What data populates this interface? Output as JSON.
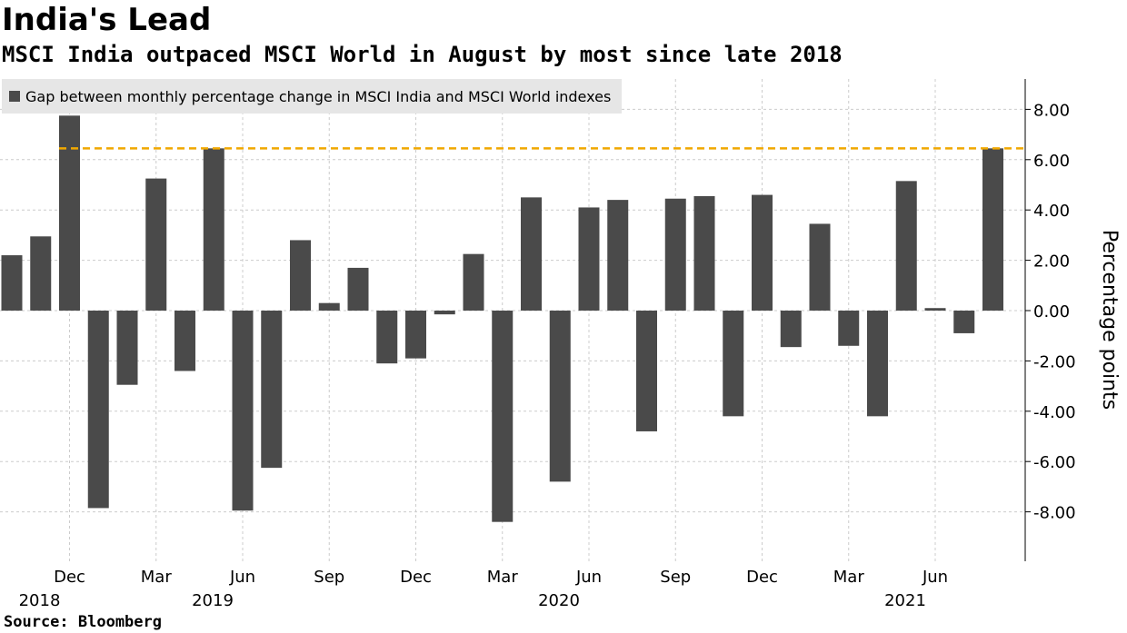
{
  "title": "India's Lead",
  "subtitle": "MSCI India outpaced MSCI World in August by most since late 2018",
  "source": "Source: Bloomberg",
  "colors": {
    "bar": "#4a4a4a",
    "reference_line": "#f0a800",
    "grid": "#cccccc",
    "legend_bg": "#e6e6e6"
  },
  "chart_data": {
    "type": "bar",
    "legend": [
      "Gap between monthly percentage change in MSCI India and MSCI World indexes"
    ],
    "ylabel": "Percentage points",
    "ylim": [
      -9.5,
      9.3
    ],
    "y_ticks": [
      8,
      6,
      4,
      2,
      0,
      -2,
      -4,
      -6,
      -8
    ],
    "y_tick_labels": [
      "8.00",
      "6.00",
      "4.00",
      "2.00",
      "0.00",
      "-2.00",
      "-4.00",
      "-6.00",
      "-8.00"
    ],
    "x": [
      "2018-10",
      "2018-11",
      "2018-12",
      "2019-01",
      "2019-02",
      "2019-03",
      "2019-04",
      "2019-05",
      "2019-06",
      "2019-07",
      "2019-08",
      "2019-09",
      "2019-10",
      "2019-11",
      "2019-12",
      "2020-01",
      "2020-02",
      "2020-03",
      "2020-04",
      "2020-05",
      "2020-06",
      "2020-07",
      "2020-08",
      "2020-09",
      "2020-10",
      "2020-11",
      "2020-12",
      "2021-01",
      "2021-02",
      "2021-03",
      "2021-04",
      "2021-05",
      "2021-06",
      "2021-07",
      "2021-08"
    ],
    "series": [
      {
        "values": [
          2.2,
          2.95,
          7.75,
          -7.85,
          -2.95,
          5.25,
          -2.4,
          6.45,
          -7.95,
          -6.25,
          2.8,
          0.3,
          1.7,
          -2.1,
          -1.9,
          -0.15,
          2.25,
          -8.4,
          4.5,
          -6.8,
          4.1,
          4.4,
          -4.8,
          4.45,
          4.55,
          -4.2,
          4.6,
          -1.45,
          3.45,
          -1.4,
          -4.2,
          5.15,
          0.1,
          -0.9,
          6.45
        ]
      }
    ],
    "reference_line": {
      "value": 6.45,
      "style": "dashed"
    },
    "x_tick_labels": [
      {
        "x": "2018-12",
        "label": "Dec",
        "year": "2018"
      },
      {
        "x": "2019-03",
        "label": "Mar",
        "year": ""
      },
      {
        "x": "2019-06",
        "label": "Jun",
        "year": "2019"
      },
      {
        "x": "2019-09",
        "label": "Sep",
        "year": ""
      },
      {
        "x": "2019-12",
        "label": "Dec",
        "year": ""
      },
      {
        "x": "2020-03",
        "label": "Mar",
        "year": ""
      },
      {
        "x": "2020-06",
        "label": "Jun",
        "year": "2020"
      },
      {
        "x": "2020-09",
        "label": "Sep",
        "year": ""
      },
      {
        "x": "2020-12",
        "label": "Dec",
        "year": ""
      },
      {
        "x": "2021-03",
        "label": "Mar",
        "year": ""
      },
      {
        "x": "2021-06",
        "label": "Jun",
        "year": "2021"
      }
    ],
    "grid": true,
    "legend_position": "top-left"
  }
}
